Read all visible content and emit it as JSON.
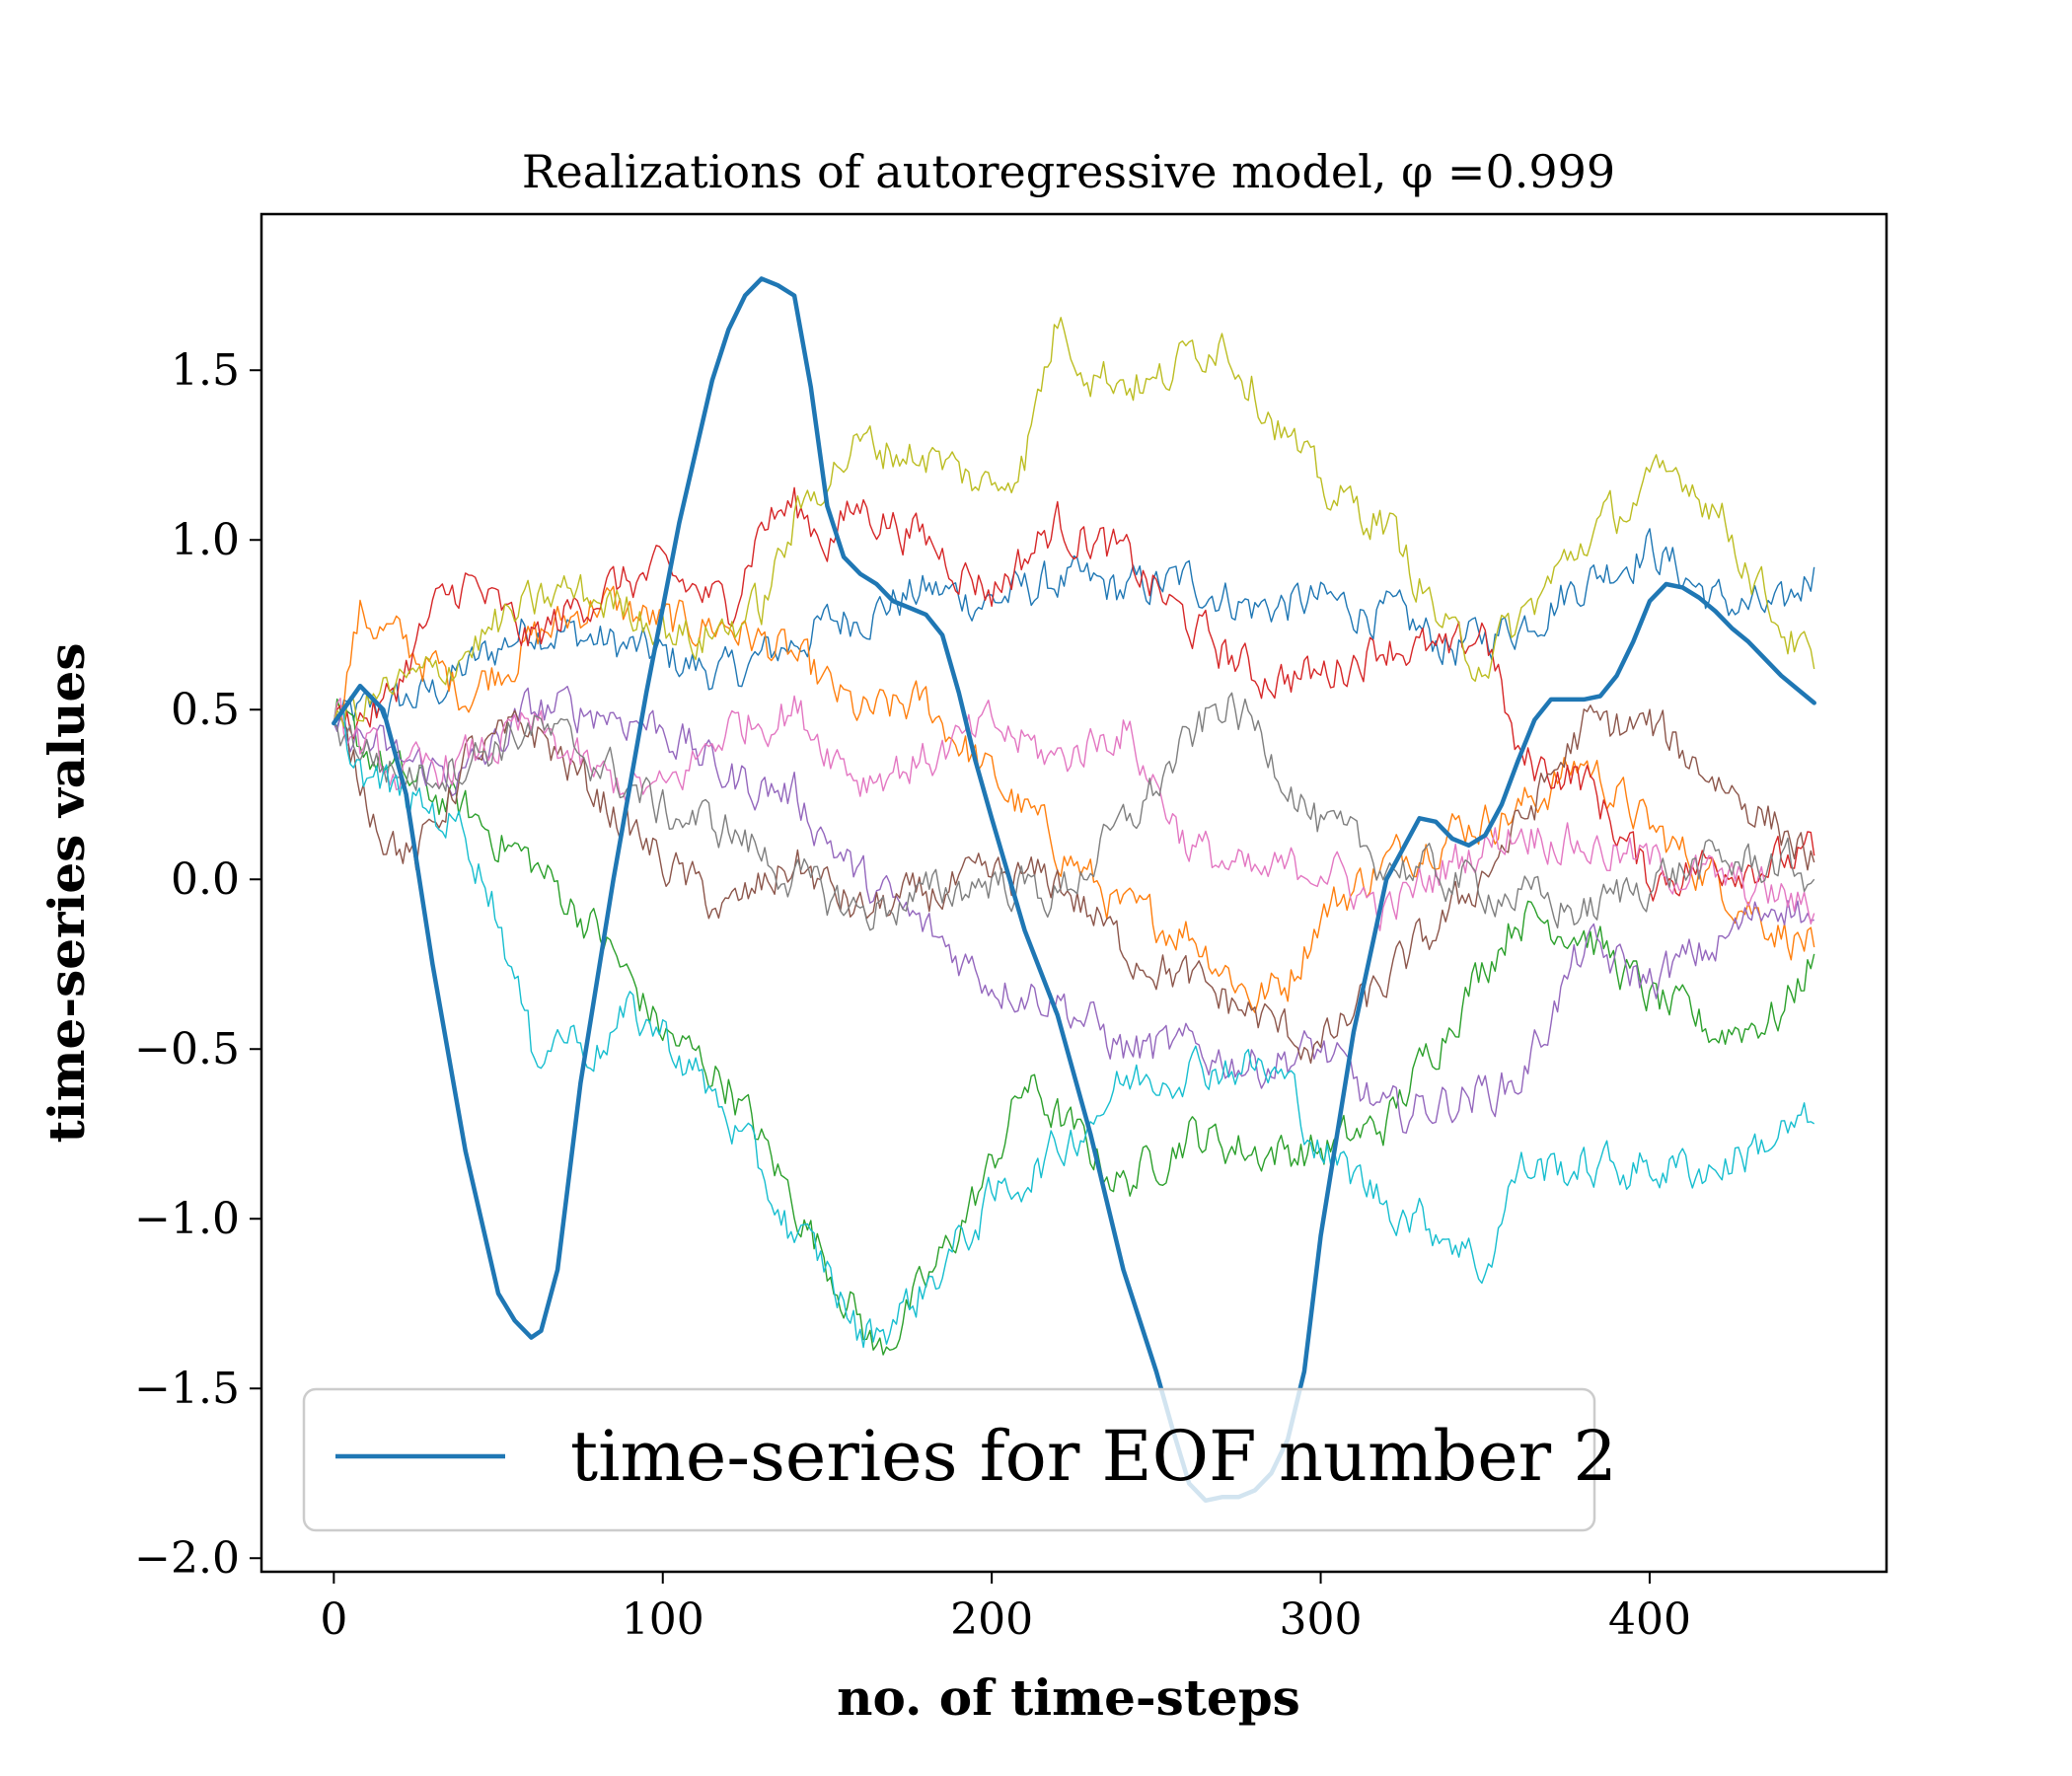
{
  "chart_data": {
    "type": "line",
    "title": "Realizations of autoregressive model, φ =0.999",
    "xlabel": "no.  of time-steps",
    "ylabel": "time-series values",
    "xlim": [
      -22,
      472
    ],
    "ylim": [
      -2.04,
      1.96
    ],
    "xticks": [
      0,
      100,
      200,
      300,
      400
    ],
    "xtick_labels": [
      "0",
      "100",
      "200",
      "300",
      "400"
    ],
    "yticks": [
      -2.0,
      -1.5,
      -1.0,
      -0.5,
      0.0,
      0.5,
      1.0,
      1.5
    ],
    "ytick_labels": [
      "−2.0",
      "−1.5",
      "−1.0",
      "−0.5",
      "0.0",
      "0.5",
      "1.0",
      "1.5"
    ],
    "grid": false,
    "legend": {
      "position": "lower-left",
      "entries": [
        "time-series for EOF number 2"
      ]
    },
    "main_series": {
      "name": "time-series for EOF number 2",
      "color": "#1f77b4",
      "x": [
        0,
        8,
        15,
        22,
        30,
        40,
        50,
        55,
        60,
        63,
        68,
        75,
        85,
        95,
        105,
        115,
        120,
        125,
        130,
        135,
        140,
        145,
        150,
        155,
        160,
        165,
        170,
        175,
        180,
        185,
        190,
        195,
        200,
        210,
        220,
        230,
        240,
        250,
        255,
        260,
        265,
        270,
        275,
        280,
        285,
        290,
        295,
        300,
        310,
        320,
        330,
        335,
        340,
        345,
        350,
        355,
        360,
        365,
        370,
        375,
        380,
        385,
        390,
        395,
        400,
        405,
        410,
        415,
        420,
        425,
        430,
        435,
        440,
        445,
        450
      ],
      "y": [
        0.46,
        0.57,
        0.5,
        0.25,
        -0.25,
        -0.8,
        -1.22,
        -1.3,
        -1.35,
        -1.33,
        -1.15,
        -0.6,
        0.0,
        0.55,
        1.05,
        1.47,
        1.62,
        1.72,
        1.77,
        1.75,
        1.72,
        1.45,
        1.1,
        0.95,
        0.9,
        0.87,
        0.82,
        0.8,
        0.78,
        0.72,
        0.55,
        0.35,
        0.18,
        -0.15,
        -0.4,
        -0.75,
        -1.15,
        -1.45,
        -1.62,
        -1.78,
        -1.83,
        -1.82,
        -1.82,
        -1.8,
        -1.75,
        -1.65,
        -1.45,
        -1.05,
        -0.45,
        0.0,
        0.18,
        0.17,
        0.12,
        0.1,
        0.13,
        0.22,
        0.35,
        0.47,
        0.53,
        0.53,
        0.53,
        0.54,
        0.6,
        0.7,
        0.82,
        0.87,
        0.86,
        0.83,
        0.79,
        0.74,
        0.7,
        0.65,
        0.6,
        0.56,
        0.52
      ]
    },
    "series": [
      {
        "color": "#1f77b4",
        "x": [
          0,
          30,
          60,
          90,
          120,
          150,
          180,
          200,
          220,
          240,
          260,
          280,
          300,
          320,
          340,
          360,
          380,
          400,
          420,
          440,
          450
        ],
        "y": [
          0.46,
          0.55,
          0.75,
          0.68,
          0.6,
          0.75,
          0.85,
          0.82,
          0.88,
          0.85,
          0.88,
          0.8,
          0.82,
          0.78,
          0.68,
          0.75,
          0.88,
          0.98,
          0.82,
          0.78,
          0.92
        ]
      },
      {
        "color": "#ff7f0e",
        "x": [
          0,
          8,
          20,
          40,
          60,
          80,
          100,
          120,
          140,
          160,
          180,
          200,
          220,
          240,
          260,
          280,
          290,
          300,
          320,
          340,
          360,
          380,
          400,
          420,
          440,
          450
        ],
        "y": [
          0.46,
          0.78,
          0.7,
          0.55,
          0.7,
          0.82,
          0.75,
          0.75,
          0.65,
          0.48,
          0.52,
          0.3,
          0.1,
          -0.1,
          -0.15,
          -0.35,
          -0.3,
          -0.1,
          0.05,
          0.15,
          0.2,
          0.35,
          0.15,
          0.0,
          -0.15,
          -0.2
        ]
      },
      {
        "color": "#2ca02c",
        "x": [
          0,
          20,
          40,
          60,
          80,
          100,
          120,
          140,
          160,
          165,
          180,
          200,
          210,
          220,
          240,
          260,
          280,
          300,
          320,
          340,
          360,
          380,
          400,
          420,
          440,
          450
        ],
        "y": [
          0.46,
          0.3,
          0.2,
          0.05,
          -0.15,
          -0.45,
          -0.6,
          -0.95,
          -1.3,
          -1.4,
          -1.2,
          -0.85,
          -0.6,
          -0.7,
          -0.9,
          -0.75,
          -0.8,
          -0.8,
          -0.72,
          -0.4,
          -0.1,
          -0.15,
          -0.35,
          -0.45,
          -0.4,
          -0.22
        ]
      },
      {
        "color": "#d62728",
        "x": [
          0,
          15,
          30,
          40,
          60,
          80,
          100,
          120,
          130,
          140,
          150,
          160,
          170,
          180,
          200,
          220,
          240,
          260,
          280,
          300,
          320,
          340,
          350,
          360,
          380,
          400,
          420,
          440,
          450
        ],
        "y": [
          0.46,
          0.5,
          0.78,
          0.88,
          0.7,
          0.85,
          0.9,
          0.8,
          1.05,
          1.1,
          1.0,
          1.1,
          1.05,
          1.0,
          0.85,
          1.05,
          0.95,
          0.75,
          0.6,
          0.6,
          0.7,
          0.65,
          0.75,
          0.35,
          0.3,
          0.0,
          0.05,
          0.05,
          0.07
        ]
      },
      {
        "color": "#9467bd",
        "x": [
          0,
          20,
          40,
          60,
          80,
          100,
          120,
          140,
          160,
          180,
          200,
          220,
          240,
          260,
          280,
          300,
          320,
          340,
          360,
          380,
          400,
          420,
          440,
          450
        ],
        "y": [
          0.46,
          0.35,
          0.3,
          0.5,
          0.5,
          0.45,
          0.3,
          0.25,
          0.0,
          -0.15,
          -0.3,
          -0.35,
          -0.5,
          -0.5,
          -0.55,
          -0.5,
          -0.7,
          -0.65,
          -0.6,
          -0.2,
          -0.3,
          -0.2,
          -0.05,
          -0.12
        ]
      },
      {
        "color": "#8c564b",
        "x": [
          0,
          15,
          25,
          40,
          60,
          80,
          100,
          120,
          140,
          160,
          180,
          200,
          220,
          240,
          260,
          280,
          300,
          320,
          340,
          360,
          380,
          400,
          420,
          440,
          450
        ],
        "y": [
          0.46,
          0.15,
          0.05,
          0.35,
          0.45,
          0.25,
          0.05,
          -0.1,
          0.05,
          -0.1,
          -0.05,
          0.0,
          0.0,
          -0.2,
          -0.3,
          -0.4,
          -0.5,
          -0.3,
          -0.1,
          0.15,
          0.45,
          0.45,
          0.3,
          0.15,
          0.05
        ]
      },
      {
        "color": "#e377c2",
        "x": [
          0,
          20,
          40,
          60,
          80,
          100,
          120,
          140,
          160,
          180,
          200,
          220,
          240,
          260,
          280,
          300,
          320,
          340,
          360,
          380,
          400,
          420,
          440,
          450
        ],
        "y": [
          0.46,
          0.3,
          0.35,
          0.45,
          0.3,
          0.25,
          0.45,
          0.5,
          0.3,
          0.35,
          0.45,
          0.35,
          0.45,
          0.1,
          0.0,
          0.05,
          -0.1,
          0.05,
          0.15,
          0.1,
          0.05,
          0.0,
          -0.05,
          -0.1
        ]
      },
      {
        "color": "#7f7f7f",
        "x": [
          0,
          20,
          40,
          60,
          80,
          100,
          120,
          140,
          160,
          180,
          200,
          220,
          240,
          260,
          270,
          280,
          300,
          320,
          340,
          360,
          380,
          400,
          420,
          440,
          450
        ],
        "y": [
          0.46,
          0.3,
          0.35,
          0.45,
          0.35,
          0.2,
          0.15,
          0.0,
          -0.1,
          -0.05,
          0.0,
          -0.05,
          0.15,
          0.4,
          0.52,
          0.45,
          0.15,
          0.05,
          0.0,
          -0.05,
          -0.1,
          0.0,
          0.05,
          0.05,
          0.0
        ]
      },
      {
        "color": "#bcbd22",
        "x": [
          0,
          15,
          30,
          50,
          70,
          90,
          110,
          130,
          140,
          150,
          160,
          180,
          200,
          210,
          220,
          230,
          250,
          260,
          270,
          280,
          300,
          320,
          340,
          350,
          360,
          380,
          400,
          410,
          420,
          440,
          450
        ],
        "y": [
          0.46,
          0.55,
          0.6,
          0.75,
          0.85,
          0.8,
          0.7,
          0.8,
          1.05,
          1.2,
          1.28,
          1.25,
          1.15,
          1.25,
          1.65,
          1.5,
          1.45,
          1.55,
          1.6,
          1.45,
          1.15,
          1.05,
          0.7,
          0.65,
          0.75,
          1.0,
          1.15,
          1.2,
          1.1,
          0.75,
          0.62
        ]
      },
      {
        "color": "#17becf",
        "x": [
          0,
          10,
          20,
          40,
          50,
          60,
          70,
          80,
          90,
          100,
          120,
          140,
          150,
          160,
          170,
          180,
          200,
          220,
          240,
          260,
          280,
          290,
          300,
          320,
          340,
          350,
          360,
          380,
          400,
          420,
          440,
          450
        ],
        "y": [
          0.46,
          0.3,
          0.25,
          0.15,
          -0.1,
          -0.5,
          -0.45,
          -0.5,
          -0.4,
          -0.45,
          -0.7,
          -1.05,
          -1.15,
          -1.35,
          -1.3,
          -1.2,
          -0.95,
          -0.8,
          -0.6,
          -0.55,
          -0.55,
          -0.6,
          -0.8,
          -0.95,
          -1.05,
          -1.15,
          -0.85,
          -0.85,
          -0.85,
          -0.85,
          -0.75,
          -0.72
        ]
      }
    ]
  }
}
